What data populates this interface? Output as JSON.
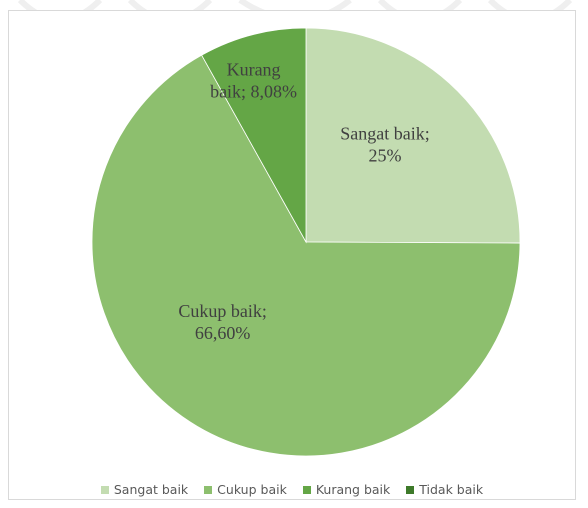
{
  "colors": {
    "sangat_baik": "#c3dcb1",
    "cukup_baik": "#8dbf6e",
    "kurang_baik": "#64a646",
    "tidak_baik": "#3e7a2a",
    "label_text": "#404040",
    "frame_border": "#d9d9d9"
  },
  "chart_data": {
    "type": "pie",
    "categories": [
      "Sangat baik",
      "Cukup baik",
      "Kurang baik",
      "Tidak baik"
    ],
    "values": [
      25,
      66.6,
      8.08,
      0
    ],
    "data_labels": [
      [
        "Sangat baik;",
        "25%"
      ],
      [
        "Cukup baik;",
        "66,60%"
      ],
      [
        "Kurang",
        "baik; 8,08%"
      ],
      null
    ],
    "legend": {
      "position": "bottom",
      "entries": [
        "Sangat baik",
        "Cukup baik",
        "Kurang baik",
        "Tidak baik"
      ]
    },
    "title": ""
  }
}
